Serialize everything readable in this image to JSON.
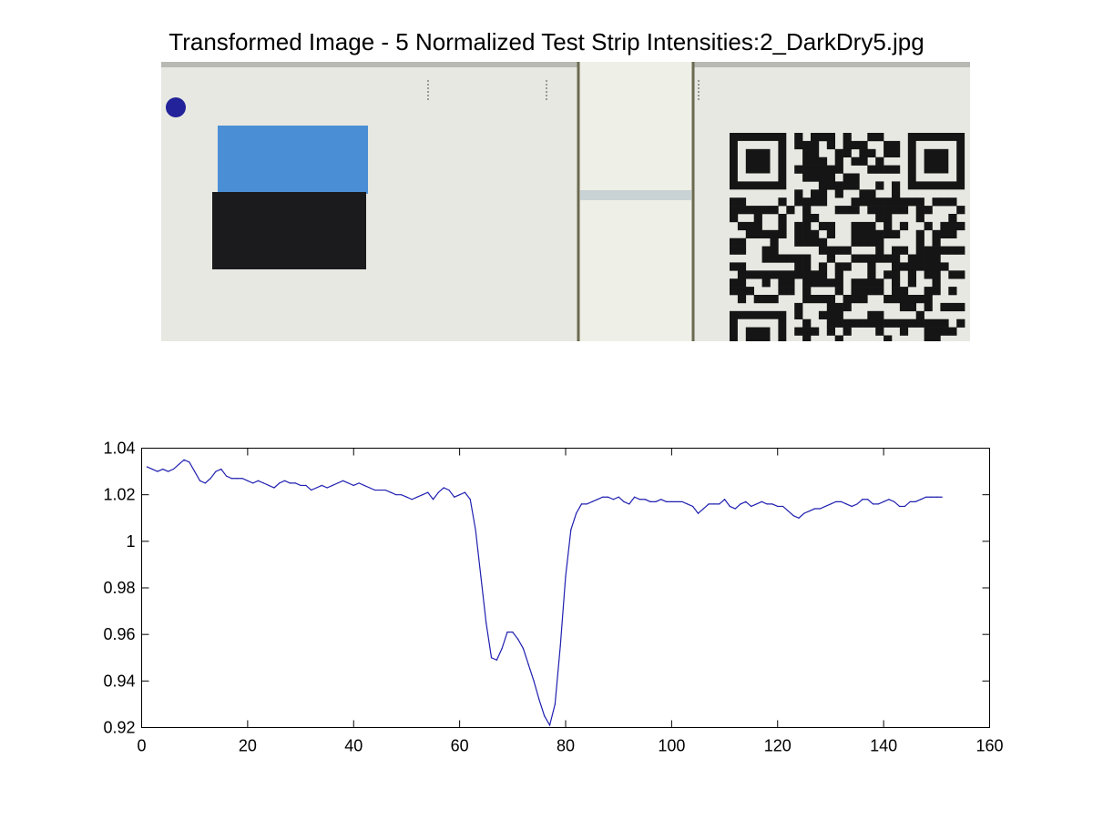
{
  "figure": {
    "title": "Transformed Image - 5 Normalized Test Strip Intensities:2_DarkDry5.jpg"
  },
  "strip_image": {
    "background_color": "#e7e8e2",
    "window_color": "#eeefe6",
    "test_line_color": "#c9d2d4",
    "swatch_blue": "#4a8fd6",
    "swatch_black": "#1b1b1d",
    "dot_color": "#22229a",
    "qr_color": "#151515"
  },
  "chart_data": {
    "type": "line",
    "title": "",
    "xlabel": "",
    "ylabel": "",
    "xlim": [
      0,
      160
    ],
    "ylim": [
      0.92,
      1.04
    ],
    "xticks": [
      "0",
      "20",
      "40",
      "60",
      "80",
      "100",
      "120",
      "140",
      "160"
    ],
    "yticks": [
      "0.92",
      "0.94",
      "0.96",
      "0.98",
      "1",
      "1.02",
      "1.04"
    ],
    "grid": false,
    "line_color": "#1f1fb0",
    "series": [
      {
        "x": [
          1,
          2,
          3,
          4,
          5,
          6,
          7,
          8,
          9,
          10,
          11,
          12,
          13,
          14,
          15,
          16,
          17,
          18,
          19,
          20,
          21,
          22,
          23,
          24,
          25,
          26,
          27,
          28,
          29,
          30,
          31,
          32,
          33,
          34,
          35,
          36,
          37,
          38,
          39,
          40,
          41,
          42,
          43,
          44,
          45,
          46,
          47,
          48,
          49,
          50,
          51,
          52,
          53,
          54,
          55,
          56,
          57,
          58,
          59,
          60,
          61,
          62,
          63,
          64,
          65,
          66,
          67,
          68,
          69,
          70,
          71,
          72,
          73,
          74,
          75,
          76,
          77,
          78,
          79,
          80,
          81,
          82,
          83,
          84,
          85,
          86,
          87,
          88,
          89,
          90,
          91,
          92,
          93,
          94,
          95,
          96,
          97,
          98,
          99,
          100,
          101,
          102,
          103,
          104,
          105,
          106,
          107,
          108,
          109,
          110,
          111,
          112,
          113,
          114,
          115,
          116,
          117,
          118,
          119,
          120,
          121,
          122,
          123,
          124,
          125,
          126,
          127,
          128,
          129,
          130,
          131,
          132,
          133,
          134,
          135,
          136,
          137,
          138,
          139,
          140,
          141,
          142,
          143,
          144,
          145,
          146,
          147,
          148,
          149,
          150,
          151
        ],
        "values": [
          1.032,
          1.031,
          1.03,
          1.031,
          1.03,
          1.031,
          1.033,
          1.035,
          1.034,
          1.03,
          1.026,
          1.025,
          1.027,
          1.03,
          1.031,
          1.028,
          1.027,
          1.027,
          1.027,
          1.026,
          1.025,
          1.026,
          1.025,
          1.024,
          1.023,
          1.025,
          1.026,
          1.025,
          1.025,
          1.024,
          1.024,
          1.022,
          1.023,
          1.024,
          1.023,
          1.024,
          1.025,
          1.026,
          1.025,
          1.024,
          1.025,
          1.024,
          1.023,
          1.022,
          1.022,
          1.022,
          1.021,
          1.02,
          1.02,
          1.019,
          1.018,
          1.019,
          1.02,
          1.021,
          1.018,
          1.021,
          1.023,
          1.022,
          1.019,
          1.02,
          1.021,
          1.018,
          1.005,
          0.985,
          0.965,
          0.95,
          0.949,
          0.954,
          0.961,
          0.961,
          0.958,
          0.954,
          0.947,
          0.94,
          0.932,
          0.925,
          0.921,
          0.93,
          0.955,
          0.985,
          1.005,
          1.012,
          1.016,
          1.016,
          1.017,
          1.018,
          1.019,
          1.019,
          1.018,
          1.019,
          1.017,
          1.016,
          1.019,
          1.018,
          1.018,
          1.017,
          1.017,
          1.018,
          1.017,
          1.017,
          1.017,
          1.017,
          1.016,
          1.015,
          1.012,
          1.014,
          1.016,
          1.016,
          1.016,
          1.018,
          1.015,
          1.014,
          1.016,
          1.017,
          1.015,
          1.016,
          1.017,
          1.016,
          1.016,
          1.015,
          1.015,
          1.013,
          1.011,
          1.01,
          1.012,
          1.013,
          1.014,
          1.014,
          1.015,
          1.016,
          1.017,
          1.017,
          1.016,
          1.015,
          1.016,
          1.018,
          1.018,
          1.016,
          1.016,
          1.017,
          1.018,
          1.017,
          1.015,
          1.015,
          1.017,
          1.017,
          1.018,
          1.019,
          1.019,
          1.019,
          1.019
        ]
      }
    ]
  }
}
